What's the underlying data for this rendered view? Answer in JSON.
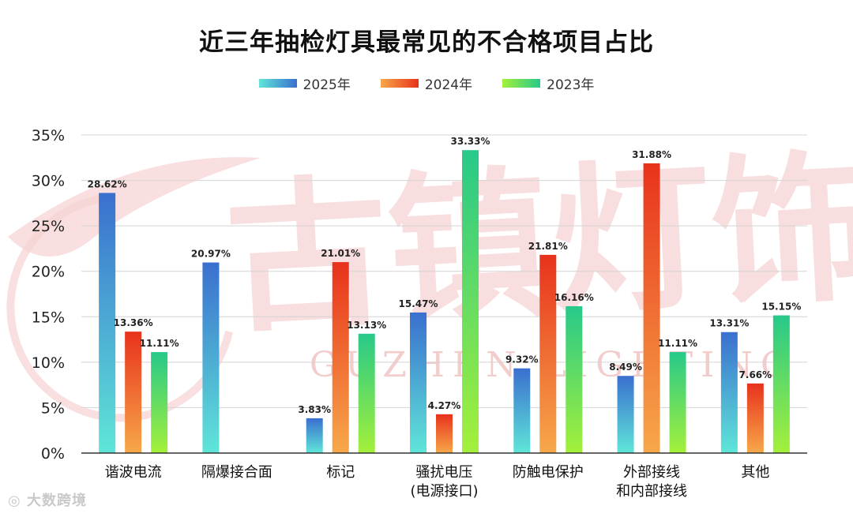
{
  "chart_data": {
    "type": "bar",
    "title": "近三年抽检灯具最常见的不合格项目占比",
    "categories": [
      [
        "谐波电流"
      ],
      [
        "隔爆接合面"
      ],
      [
        "标记"
      ],
      [
        "骚扰电压",
        "(电源接口)"
      ],
      [
        "防触电保护"
      ],
      [
        "外部接线",
        "和内部接线"
      ],
      [
        "其他"
      ]
    ],
    "series": [
      {
        "name": "2025年",
        "values": [
          28.62,
          20.97,
          3.83,
          15.47,
          9.32,
          8.49,
          13.31
        ],
        "color_top": "#3a6fcf",
        "color_bottom": "#5fe6d8"
      },
      {
        "name": "2024年",
        "values": [
          13.36,
          null,
          21.01,
          4.27,
          21.81,
          31.88,
          7.66
        ],
        "color_top": "#e8321c",
        "color_bottom": "#f7a84a"
      },
      {
        "name": "2023年",
        "values": [
          11.11,
          null,
          13.13,
          33.33,
          16.16,
          11.11,
          15.15
        ],
        "color_top": "#27c98a",
        "color_bottom": "#a4f03a"
      }
    ],
    "data_labels": [
      [
        "28.62%",
        "20.97%",
        "3.83%",
        "15.47%",
        "9.32%",
        "8.49%",
        "13.31%"
      ],
      [
        "13.36%",
        null,
        "21.01%",
        "4.27%",
        "21.81%",
        "31.88%",
        "7.66%"
      ],
      [
        "11.11%",
        null,
        "13.13%",
        "33.33%",
        "16.16%",
        "11.11%",
        "15.15%"
      ]
    ],
    "ylim": [
      0,
      35
    ],
    "yticks": [
      "0%",
      "5%",
      "10%",
      "15%",
      "20%",
      "25%",
      "30%",
      "35%"
    ],
    "xlabel": "",
    "ylabel": "",
    "legend_position": "top-center",
    "grid": true
  },
  "watermark": {
    "background_chars": "古镇灯饰",
    "background_latin": "GUZHEN LIGHTING",
    "corner_text": "大数跨境"
  },
  "colors": {
    "grid": "#d4d4d4",
    "axis": "#333333",
    "watermark": "#f4c9c9"
  }
}
